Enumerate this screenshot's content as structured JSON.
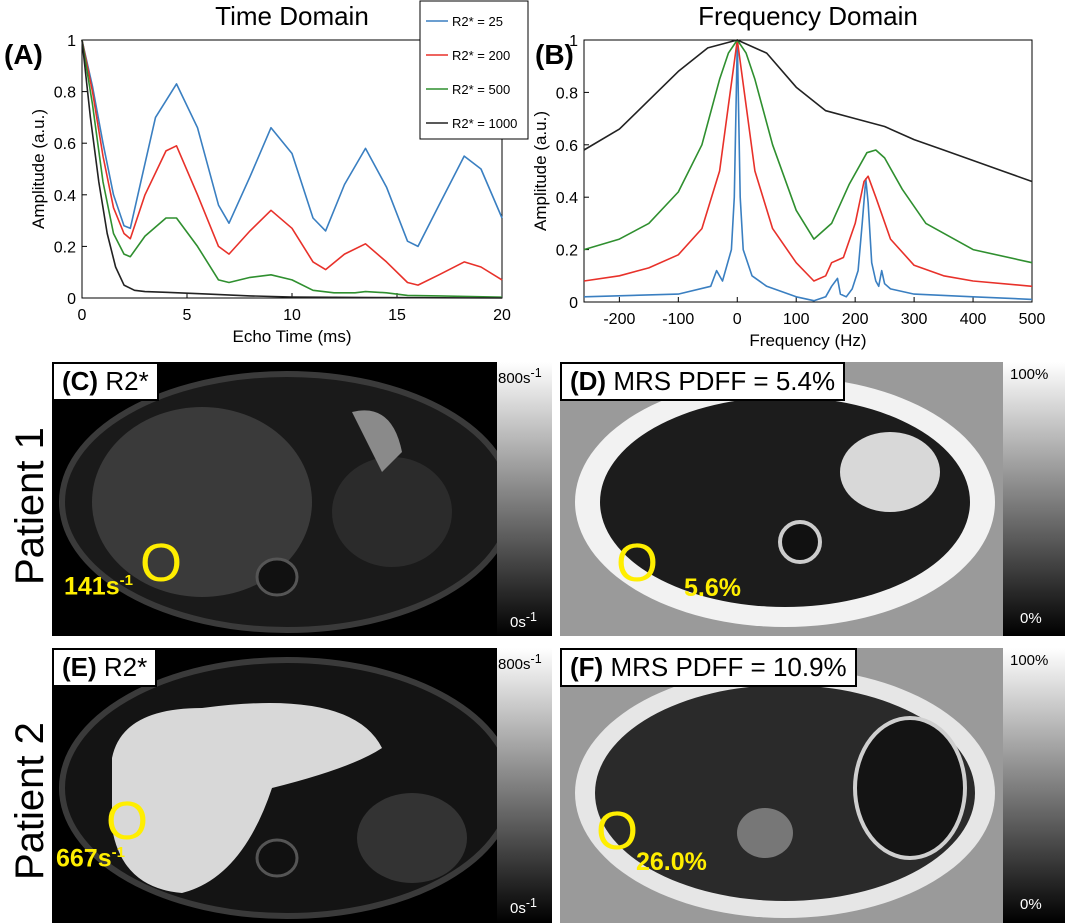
{
  "chart_data": [
    {
      "panel": "(A)",
      "type": "line",
      "title": "Time Domain",
      "xlabel": "Echo Time (ms)",
      "ylabel": "Amplitude (a.u.)",
      "xlim": [
        0,
        20
      ],
      "ylim": [
        0,
        1
      ],
      "xticks": [
        "0",
        "5",
        "10",
        "15",
        "20"
      ],
      "yticks": [
        "0",
        "0.2",
        "0.4",
        "0.6",
        "0.8",
        "1"
      ],
      "legend": [
        "R2* = 25",
        "R2* = 200",
        "R2* = 500",
        "R2* = 1000"
      ],
      "series": [
        {
          "name": "R2* = 25",
          "color": "#3a7fc1",
          "x": [
            0,
            0.5,
            1,
            1.5,
            2,
            2.3,
            2.8,
            3.5,
            4.5,
            5.5,
            6.5,
            7,
            8,
            9,
            10,
            11,
            11.6,
            12.5,
            13.5,
            14.5,
            15.5,
            16,
            17,
            18.2,
            19,
            20
          ],
          "y": [
            1,
            0.82,
            0.6,
            0.4,
            0.28,
            0.27,
            0.45,
            0.7,
            0.83,
            0.66,
            0.36,
            0.29,
            0.47,
            0.66,
            0.56,
            0.31,
            0.26,
            0.44,
            0.58,
            0.43,
            0.22,
            0.2,
            0.36,
            0.55,
            0.5,
            0.31
          ]
        },
        {
          "name": "R2* = 200",
          "color": "#e8312a",
          "x": [
            0,
            0.5,
            1,
            1.5,
            2,
            2.3,
            3,
            4,
            4.5,
            5.5,
            6.5,
            7,
            8,
            9,
            10,
            11,
            11.6,
            12.5,
            13.5,
            14.5,
            15.5,
            16,
            17,
            18.2,
            19,
            20
          ],
          "y": [
            1,
            0.8,
            0.55,
            0.35,
            0.25,
            0.23,
            0.4,
            0.57,
            0.59,
            0.4,
            0.2,
            0.17,
            0.26,
            0.34,
            0.27,
            0.14,
            0.11,
            0.17,
            0.21,
            0.14,
            0.06,
            0.05,
            0.09,
            0.14,
            0.12,
            0.07
          ]
        },
        {
          "name": "R2* = 500",
          "color": "#2f8f2f",
          "x": [
            0,
            0.5,
            1,
            1.5,
            2,
            2.3,
            3,
            4,
            4.5,
            5.5,
            6.5,
            7,
            8,
            9,
            10,
            11,
            12,
            13,
            13.5,
            14.5,
            15.5,
            17,
            18.5,
            20
          ],
          "y": [
            1,
            0.75,
            0.45,
            0.25,
            0.17,
            0.16,
            0.24,
            0.31,
            0.31,
            0.2,
            0.07,
            0.06,
            0.08,
            0.09,
            0.07,
            0.03,
            0.02,
            0.02,
            0.025,
            0.02,
            0.01,
            0.008,
            0.006,
            0.003
          ]
        },
        {
          "name": "R2* = 1000",
          "color": "#222222",
          "x": [
            0,
            0.4,
            0.8,
            1.2,
            1.6,
            2,
            2.5,
            3,
            4,
            6,
            8,
            10,
            14,
            20
          ],
          "y": [
            1,
            0.7,
            0.45,
            0.25,
            0.12,
            0.05,
            0.03,
            0.025,
            0.022,
            0.015,
            0.008,
            0.004,
            0.002,
            0
          ]
        }
      ]
    },
    {
      "panel": "(B)",
      "type": "line",
      "title": "Frequency Domain",
      "xlabel": "Frequency (Hz)",
      "ylabel": "Amplitude (a.u.)",
      "xlim": [
        -260,
        500
      ],
      "ylim": [
        0,
        1
      ],
      "xticks": [
        "-200",
        "-100",
        "0",
        "100",
        "200",
        "300",
        "400",
        "500"
      ],
      "yticks": [
        "0",
        "0.2",
        "0.4",
        "0.6",
        "0.8",
        "1"
      ],
      "series": [
        {
          "name": "R2* = 25",
          "color": "#3a7fc1",
          "x": [
            -260,
            -100,
            -45,
            -35,
            -25,
            -10,
            -5,
            0,
            5,
            10,
            25,
            50,
            100,
            130,
            150,
            160,
            170,
            175,
            185,
            195,
            205,
            212,
            218,
            222,
            228,
            235,
            240,
            245,
            250,
            260,
            300,
            400,
            500
          ],
          "y": [
            0.02,
            0.03,
            0.06,
            0.12,
            0.08,
            0.2,
            0.4,
            1,
            0.4,
            0.2,
            0.1,
            0.06,
            0.02,
            0.005,
            0.02,
            0.06,
            0.09,
            0.03,
            0.02,
            0.05,
            0.12,
            0.3,
            0.47,
            0.38,
            0.15,
            0.08,
            0.06,
            0.12,
            0.07,
            0.05,
            0.03,
            0.02,
            0.01
          ]
        },
        {
          "name": "R2* = 200",
          "color": "#e8312a",
          "x": [
            -260,
            -200,
            -150,
            -100,
            -60,
            -30,
            -15,
            0,
            15,
            30,
            60,
            100,
            130,
            150,
            160,
            170,
            180,
            200,
            215,
            222,
            235,
            260,
            300,
            350,
            400,
            500
          ],
          "y": [
            0.08,
            0.1,
            0.13,
            0.18,
            0.28,
            0.5,
            0.75,
            1,
            0.75,
            0.5,
            0.28,
            0.15,
            0.08,
            0.1,
            0.15,
            0.16,
            0.17,
            0.3,
            0.46,
            0.48,
            0.4,
            0.24,
            0.14,
            0.1,
            0.08,
            0.06
          ]
        },
        {
          "name": "R2* = 500",
          "color": "#2f8f2f",
          "x": [
            -260,
            -200,
            -150,
            -100,
            -60,
            -30,
            -15,
            0,
            15,
            30,
            60,
            100,
            130,
            160,
            190,
            220,
            235,
            250,
            280,
            320,
            400,
            500
          ],
          "y": [
            0.2,
            0.24,
            0.3,
            0.42,
            0.6,
            0.85,
            0.95,
            1,
            0.95,
            0.85,
            0.6,
            0.35,
            0.24,
            0.3,
            0.45,
            0.57,
            0.58,
            0.55,
            0.43,
            0.3,
            0.2,
            0.15
          ]
        },
        {
          "name": "R2* = 1000",
          "color": "#222222",
          "x": [
            -260,
            -200,
            -150,
            -100,
            -50,
            0,
            50,
            100,
            150,
            200,
            250,
            300,
            350,
            400,
            450,
            500
          ],
          "y": [
            0.58,
            0.66,
            0.77,
            0.88,
            0.97,
            1,
            0.95,
            0.82,
            0.73,
            0.7,
            0.67,
            0.62,
            0.58,
            0.54,
            0.5,
            0.46
          ]
        }
      ]
    }
  ],
  "mri": {
    "patient1": "Patient 1",
    "patient2": "Patient 2",
    "c": {
      "letter": "(C)",
      "title": "R2*",
      "value_num": "141s",
      "value_sup": "-1",
      "roi": "O"
    },
    "d": {
      "letter": "(D)",
      "title": "MRS PDFF = 5.4%",
      "value": "5.6%",
      "roi": "O"
    },
    "e": {
      "letter": "(E)",
      "title": "R2*",
      "value_num": "667s",
      "value_sup": "-1",
      "roi": "O"
    },
    "f": {
      "letter": "(F)",
      "title": "MRS PDFF = 10.9%",
      "value": "26.0%",
      "roi": "O"
    },
    "r2_cbar_top_num": "800s",
    "r2_cbar_top_sup": "-1",
    "r2_cbar_bottom_num": "0s",
    "r2_cbar_bottom_sup": "-1",
    "pdff_cbar_top": "100%",
    "pdff_cbar_bottom": "0%"
  }
}
